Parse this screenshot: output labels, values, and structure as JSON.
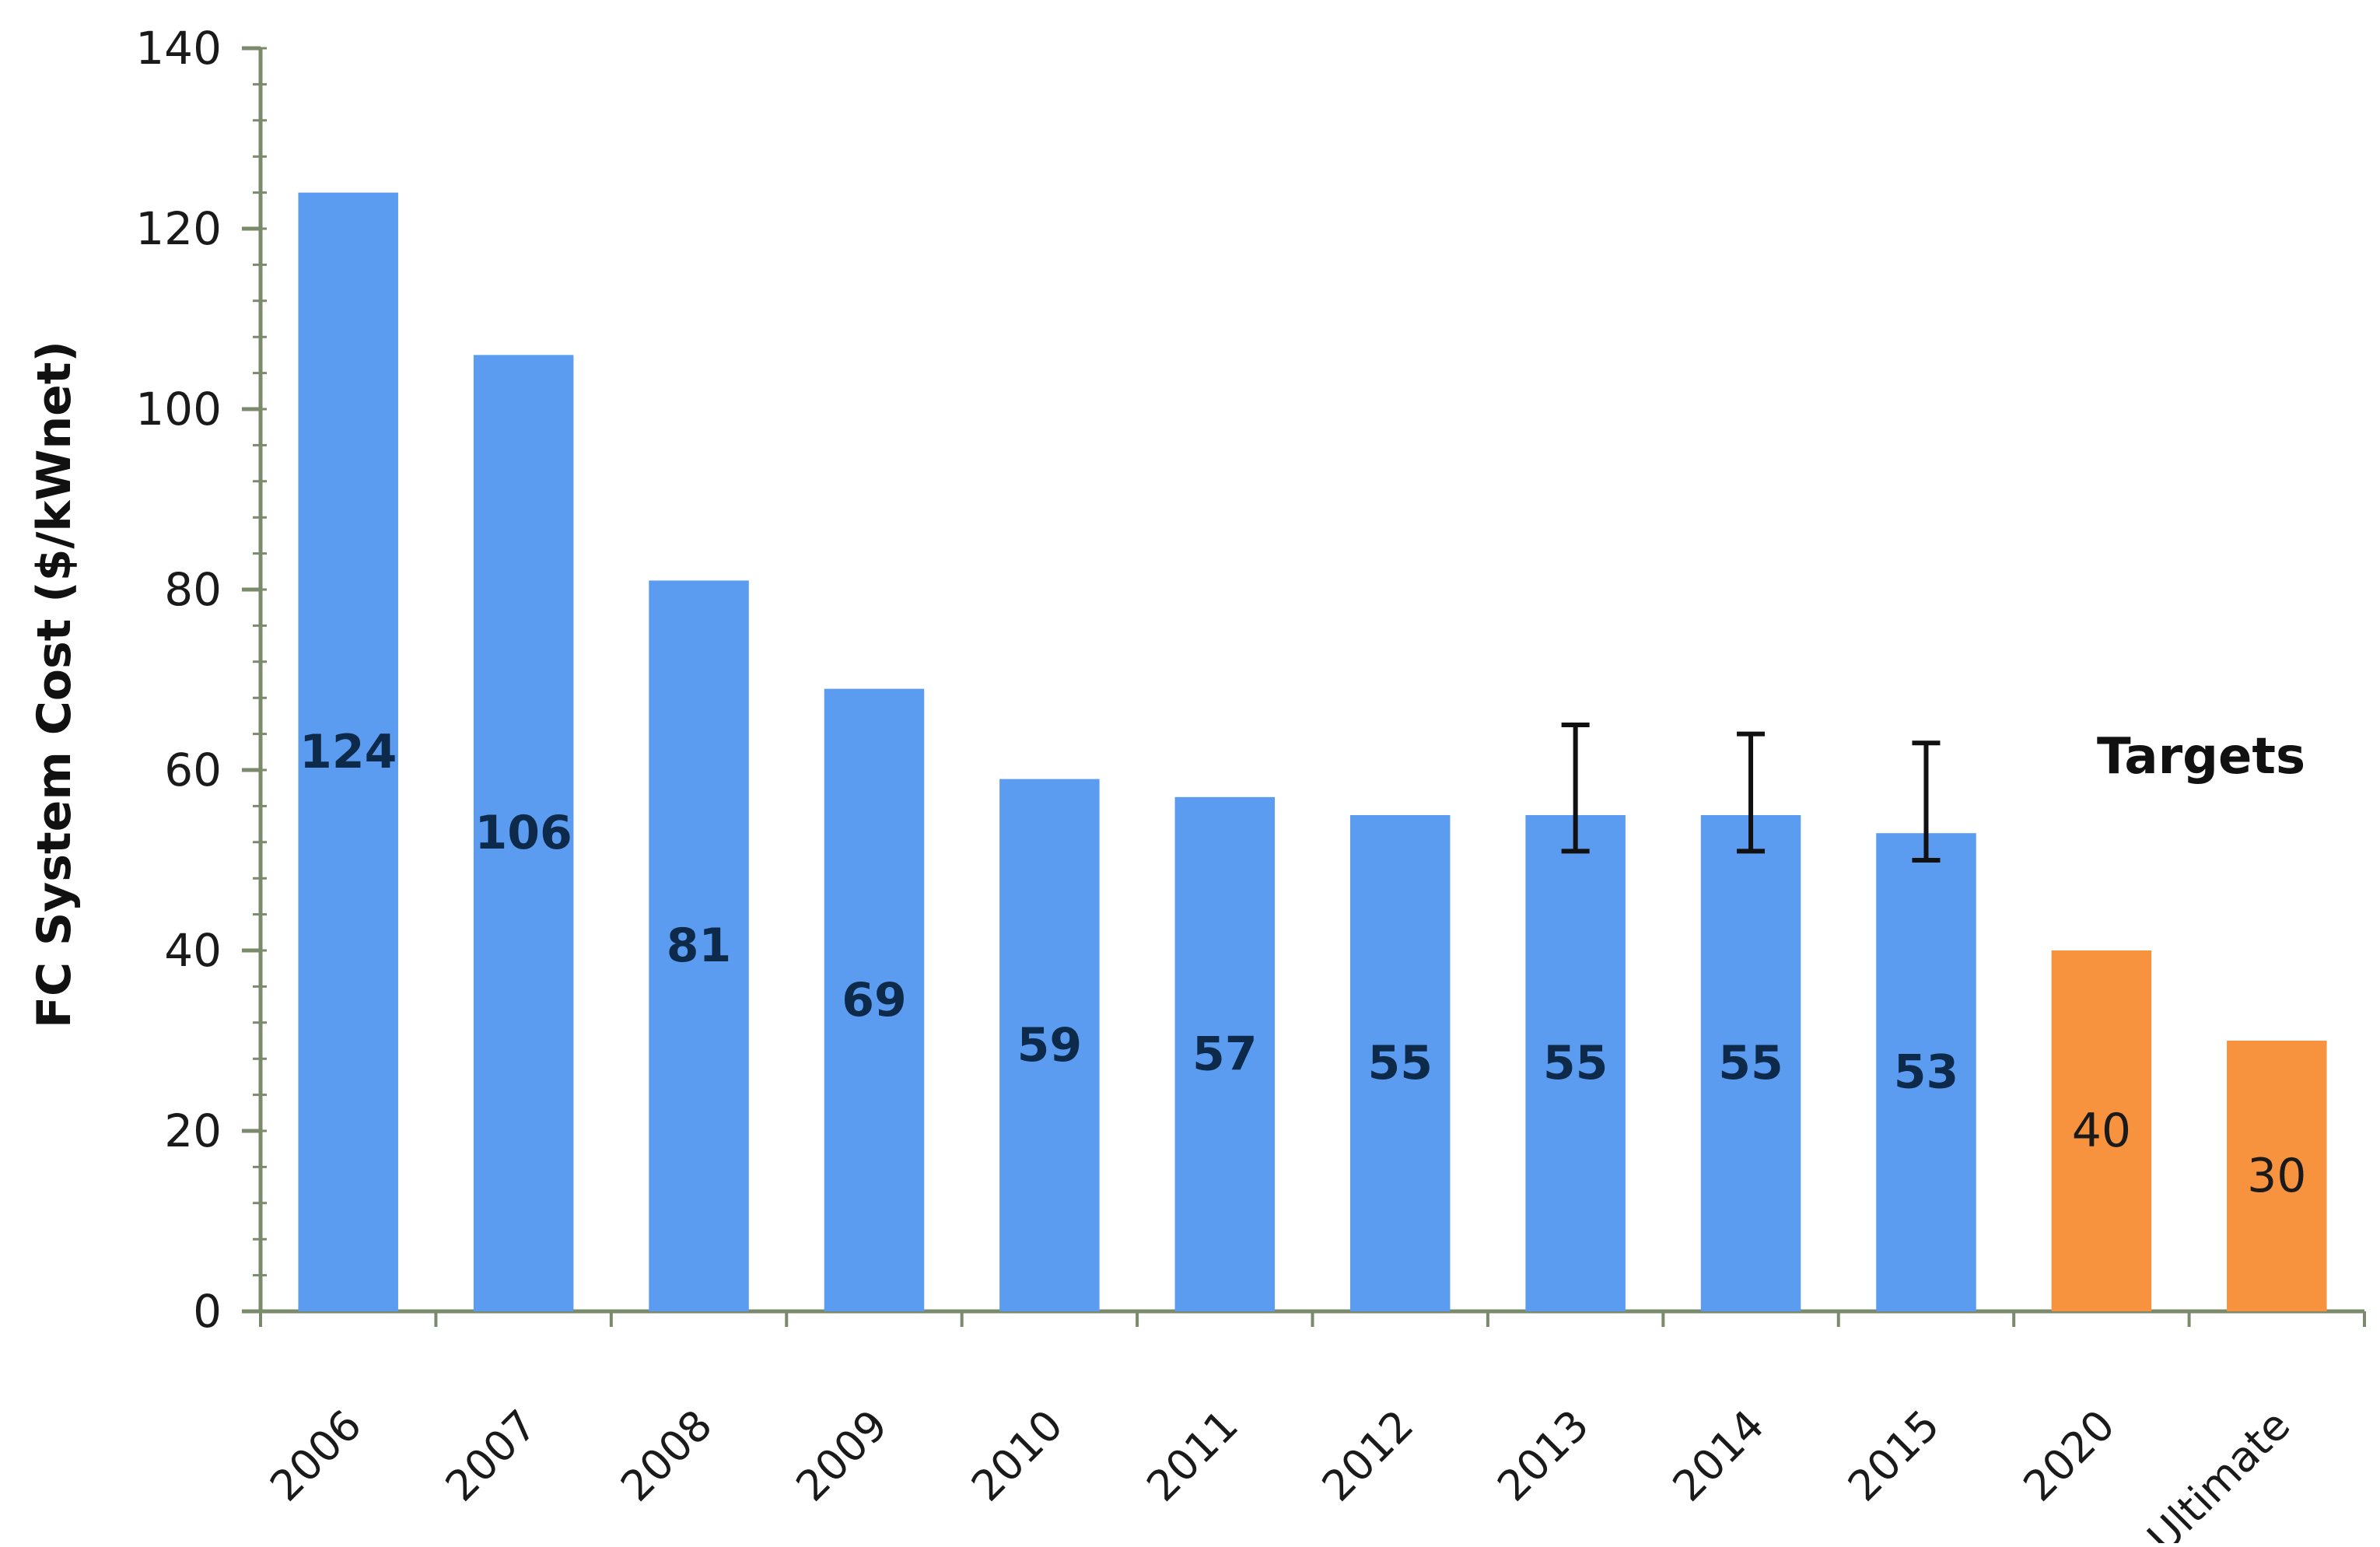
{
  "chart_data": {
    "type": "bar",
    "title": "",
    "xlabel": "",
    "ylabel": "FC System Cost ($/kWnet)",
    "ylim": [
      0,
      140
    ],
    "yticks": [
      0,
      20,
      40,
      60,
      80,
      100,
      120,
      140
    ],
    "grid": false,
    "categories": [
      "2006",
      "2007",
      "2008",
      "2009",
      "2010",
      "2011",
      "2012",
      "2013",
      "2014",
      "2015",
      "2020",
      "Ultimate"
    ],
    "series": [
      {
        "values": [
          124,
          106,
          81,
          69,
          59,
          57,
          55,
          55,
          55,
          53,
          null,
          null
        ],
        "color": "#5b9cf0"
      },
      {
        "values": [
          null,
          null,
          null,
          null,
          null,
          null,
          null,
          null,
          null,
          null,
          40,
          30
        ],
        "color": "#f7923f"
      }
    ],
    "data_labels": [
      "124",
      "106",
      "81",
      "69",
      "59",
      "57",
      "55",
      "55",
      "55",
      "53",
      "40",
      "30"
    ],
    "error_bars": [
      {
        "category": "2013",
        "low": 51,
        "high": 65
      },
      {
        "category": "2014",
        "low": 51,
        "high": 64
      },
      {
        "category": "2015",
        "low": 50,
        "high": 63
      }
    ],
    "annotations": [
      {
        "text": "Targets",
        "anchor_category": "2020"
      }
    ],
    "colors": {
      "actual_bar": "#5b9cf0",
      "target_bar": "#f7923f",
      "bar_label": "#0e2a4a",
      "target_label": "#1a1a1a",
      "axis": "#7a8a6a",
      "tick_text": "#1a1a1a"
    }
  }
}
